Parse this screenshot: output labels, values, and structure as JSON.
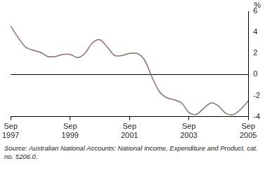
{
  "chart_data": {
    "type": "line",
    "y_label": "%",
    "caption": "Source: Australian National Accounts: National Income, Expenditure and Product, cat. no. 5206.0.",
    "categories": [
      "Sep 1997",
      null,
      null,
      null,
      null,
      null,
      null,
      null,
      "Sep 1999",
      null,
      null,
      null,
      null,
      null,
      null,
      null,
      "Sep 2001",
      null,
      null,
      null,
      null,
      null,
      null,
      null,
      "Sep 2003",
      null,
      null,
      null,
      null,
      null,
      null,
      null,
      "Sep 2005"
    ],
    "values": [
      4.6,
      3.5,
      2.6,
      2.3,
      2.1,
      1.7,
      1.7,
      1.9,
      1.9,
      1.6,
      2.0,
      3.0,
      3.3,
      2.6,
      1.8,
      1.8,
      2.0,
      2.0,
      1.4,
      -0.2,
      -1.6,
      -2.2,
      -2.4,
      -2.7,
      -3.6,
      -3.8,
      -3.2,
      -2.7,
      -3.0,
      -3.7,
      -3.8,
      -3.3,
      -2.5
    ],
    "color": "#8c6f6a",
    "ylim": [
      -4,
      6
    ],
    "yticks": [
      -4,
      -2,
      0,
      2,
      4,
      6
    ],
    "grid": false
  }
}
